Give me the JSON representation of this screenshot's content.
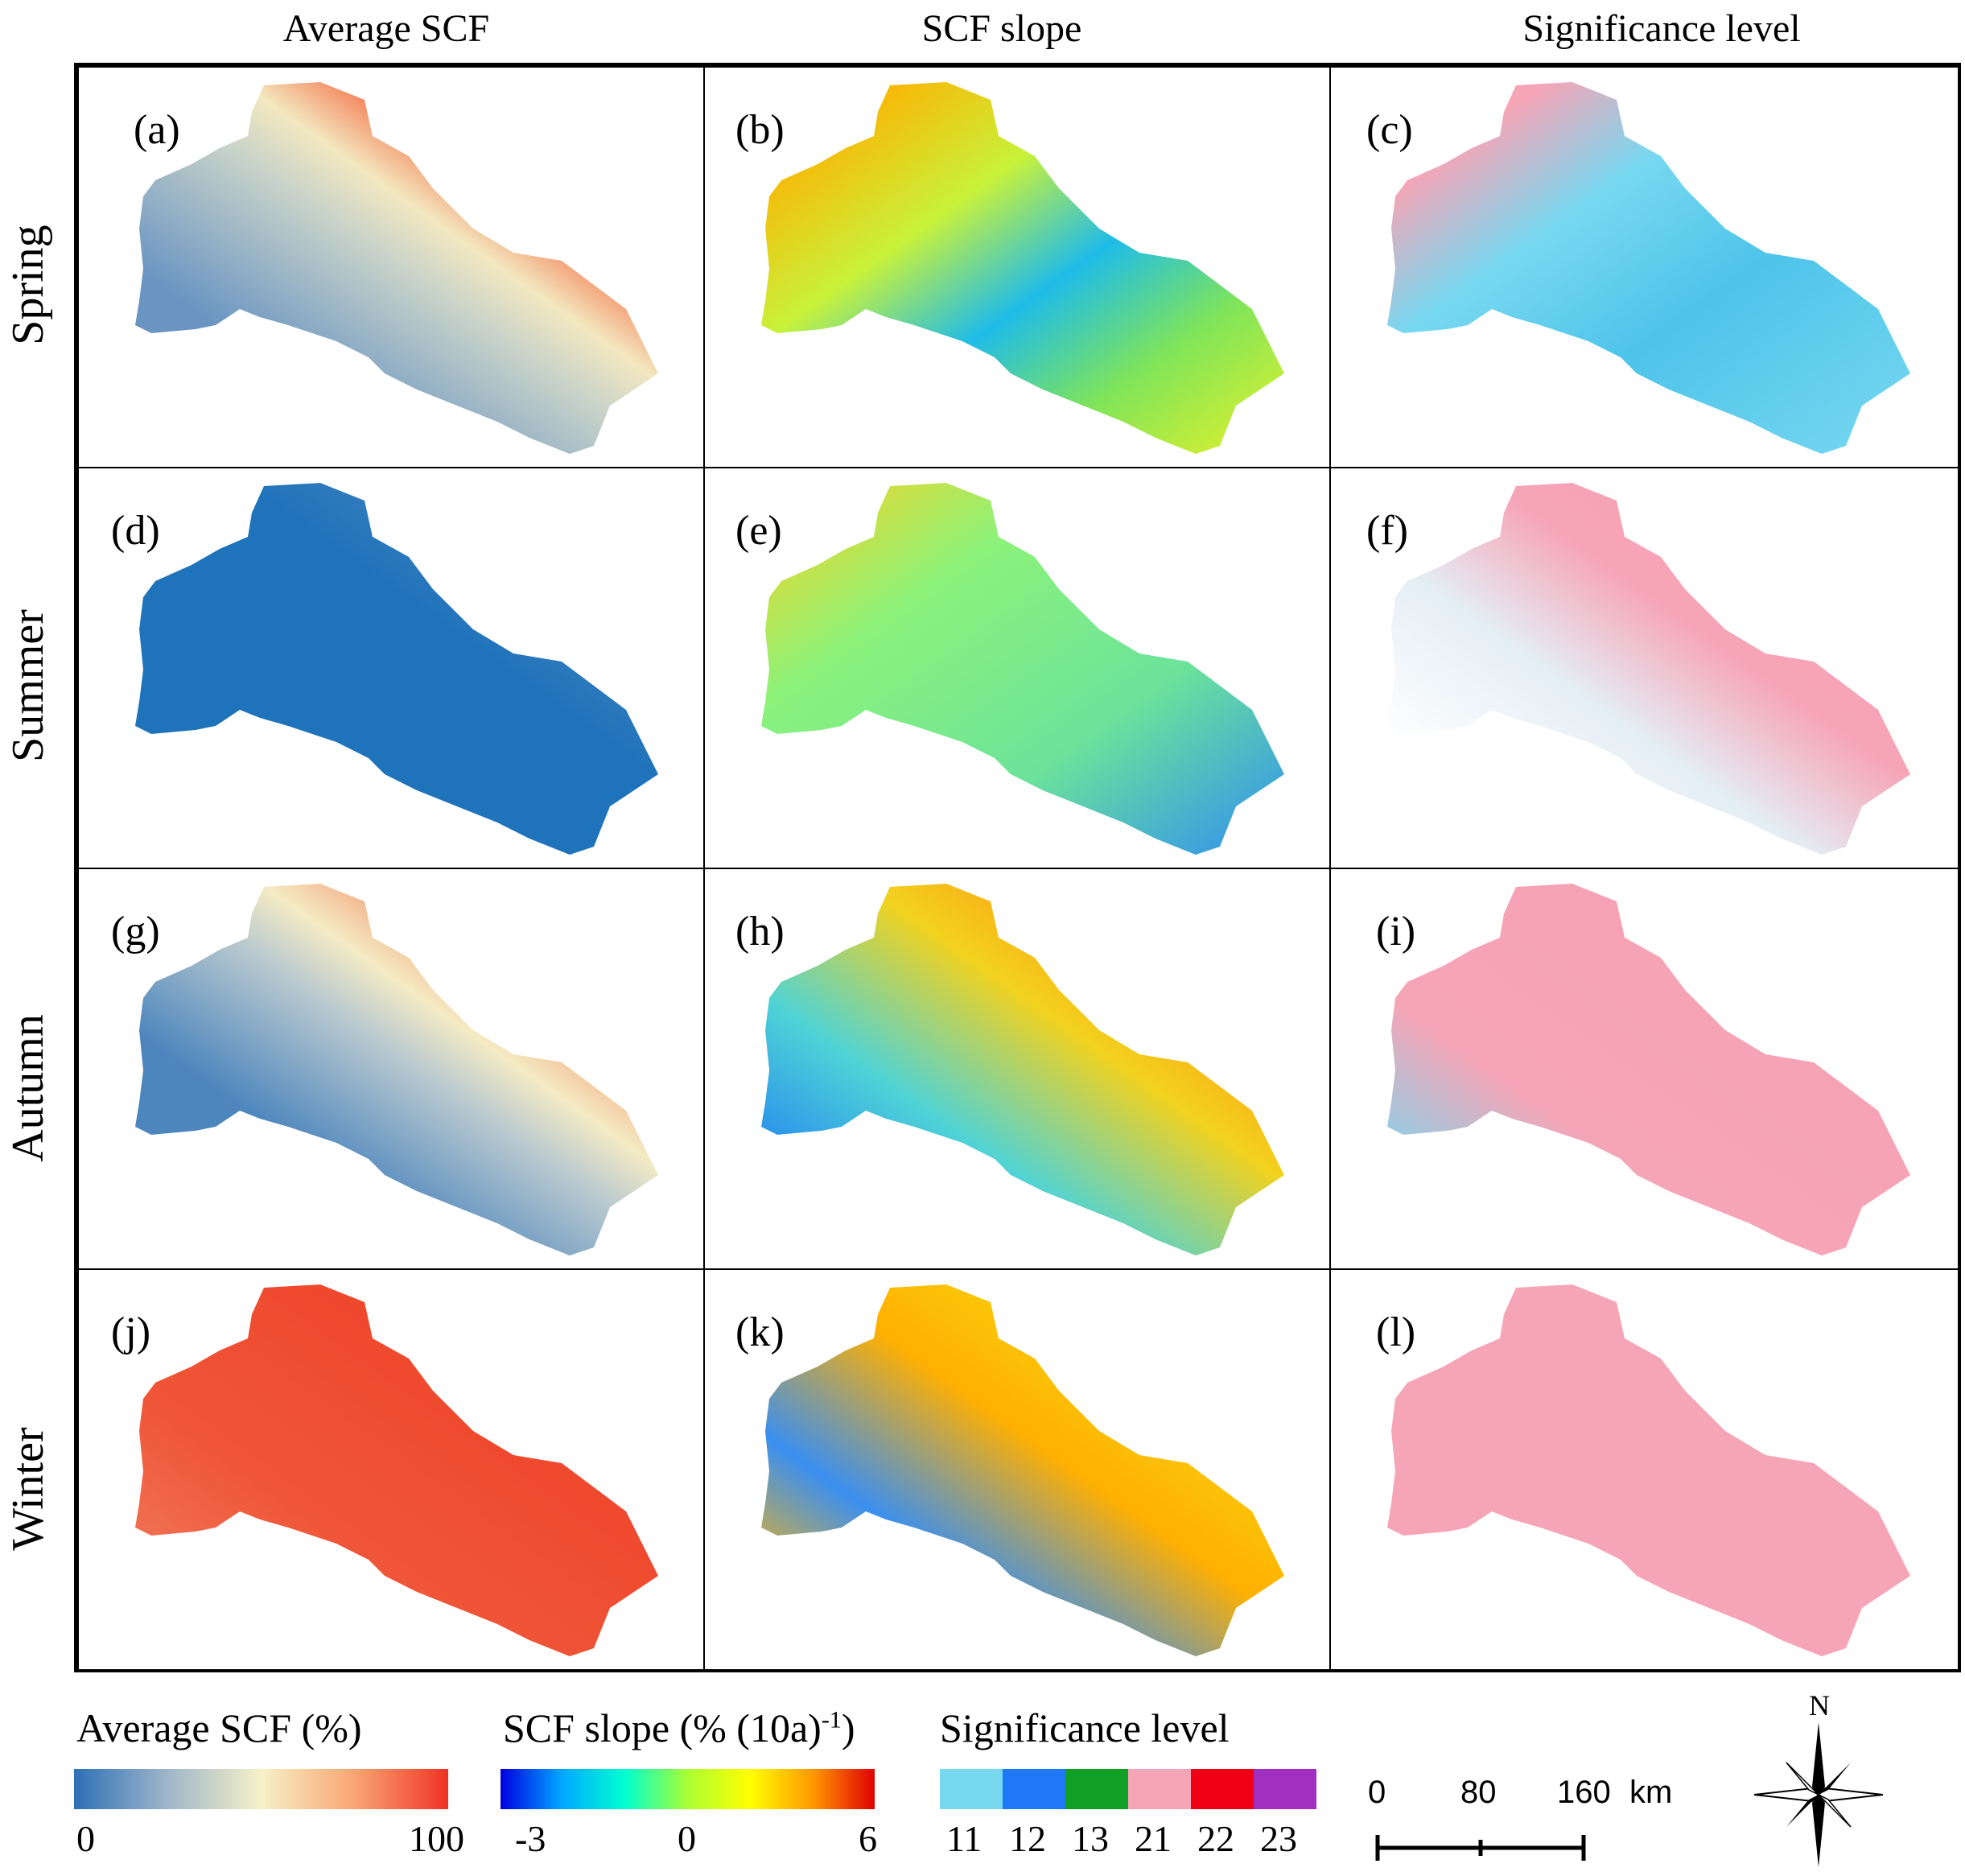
{
  "columns": [
    "Average SCF",
    "SCF slope",
    "Significance level"
  ],
  "rows": [
    "Spring",
    "Summer",
    "Autumn",
    "Winter"
  ],
  "panels": {
    "a": "(a)",
    "b": "(b)",
    "c": "(c)",
    "d": "(d)",
    "e": "(e)",
    "f": "(f)",
    "g": "(g)",
    "h": "(h)",
    "i": "(i)",
    "j": "(j)",
    "k": "(k)",
    "l": "(l)"
  },
  "legend": {
    "scf": {
      "title": "Average SCF (%)",
      "min": "0",
      "max": "100",
      "colors": [
        "#2e6fb7",
        "#9fb6c9",
        "#f6f1c8",
        "#f8a572",
        "#f03324"
      ]
    },
    "slope": {
      "title_main": "SCF slope (% (10a)",
      "title_sup": "-1",
      "title_end": ")",
      "ticks": [
        "-3",
        "0",
        "6"
      ],
      "colors": [
        "#0000e0",
        "#00aaff",
        "#00ffd0",
        "#aaff33",
        "#ffff00",
        "#ff9900",
        "#e00000"
      ]
    },
    "significance": {
      "title": "Significance level",
      "classes": [
        {
          "label": "11",
          "color": "#78d8f0"
        },
        {
          "label": "12",
          "color": "#1f78f5"
        },
        {
          "label": "13",
          "color": "#11a026"
        },
        {
          "label": "21",
          "color": "#f6a5b6"
        },
        {
          "label": "22",
          "color": "#f00014"
        },
        {
          "label": "23",
          "color": "#a12fc0"
        }
      ]
    }
  },
  "scalebar": {
    "ticks": [
      "0",
      "80",
      "160"
    ],
    "unit": "km"
  },
  "north_arrow": {
    "label": "N"
  }
}
